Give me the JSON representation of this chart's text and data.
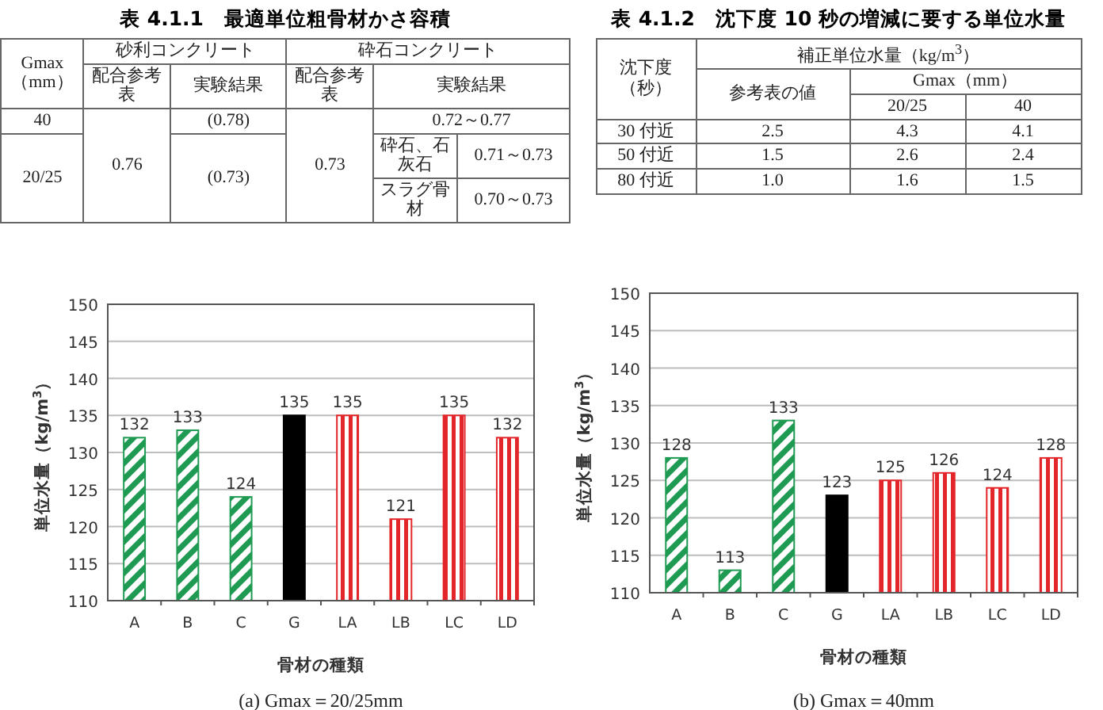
{
  "chart_data": [
    {
      "type": "other",
      "title": "表 4.1.1　最適単位粗骨材かさ容積",
      "annotations": [
        "Gmax（mm）",
        "砂利コンクリート",
        "砕石コンクリート",
        "配合参考表",
        "実験結果",
        "配合参考表",
        "実験結果",
        "40",
        "0.76",
        "(0.78)",
        "0.73",
        "0.72～0.77",
        "20/25",
        "(0.73)",
        "砕石、石灰石",
        "0.71～0.73",
        "スラグ骨材",
        "0.70～0.73"
      ]
    },
    {
      "type": "other",
      "title": "表 4.1.2　沈下度 10 秒の増減に要する単位水量",
      "annotations": [
        "沈下度（秒）",
        "補正単位水量（kg/m$^{3}$）",
        "参考表の値",
        "Gmax（mm）",
        "20/25",
        "40",
        "30 付近",
        "2.5",
        "4.3",
        "4.1",
        "50 付近",
        "1.5",
        "2.6",
        "2.4",
        "80 付近",
        "1.0",
        "1.6",
        "1.5"
      ]
    },
    {
      "type": "bar",
      "xlabel": "骨材の種類",
      "ylabel": "単位水量（kg/m$^{3}$）",
      "categories": [
        "A",
        "B",
        "C",
        "G",
        "LA",
        "LB",
        "LC",
        "LD"
      ],
      "values": [
        132,
        133,
        124,
        135,
        135,
        121,
        135,
        132
      ],
      "colors": [
        "#1f9a52",
        "#1f9a52",
        "#1f9a52",
        "#000000",
        "#e3262a",
        "#e3262a",
        "#e3262a",
        "#e3262a"
      ],
      "ylim": [
        110,
        150
      ],
      "yticks": [
        110,
        115,
        120,
        125,
        130,
        135,
        140,
        145,
        150
      ],
      "grid": "y",
      "data_labels": true,
      "annotations": [
        "(a) Gmax＝20/25mm"
      ]
    },
    {
      "type": "bar",
      "xlabel": "骨材の種類",
      "ylabel": "単位水量（kg/m$^{3}$）",
      "categories": [
        "A",
        "B",
        "C",
        "G",
        "LA",
        "LB",
        "LC",
        "LD"
      ],
      "values": [
        128,
        113,
        133,
        123,
        125,
        126,
        124,
        128
      ],
      "colors": [
        "#1f9a52",
        "#1f9a52",
        "#1f9a52",
        "#000000",
        "#e3262a",
        "#e3262a",
        "#e3262a",
        "#e3262a"
      ],
      "ylim": [
        110,
        150
      ],
      "yticks": [
        110,
        115,
        120,
        125,
        130,
        135,
        140,
        145,
        150
      ],
      "grid": "y",
      "data_labels": true,
      "annotations": [
        "(b) Gmax＝40mm"
      ]
    }
  ]
}
